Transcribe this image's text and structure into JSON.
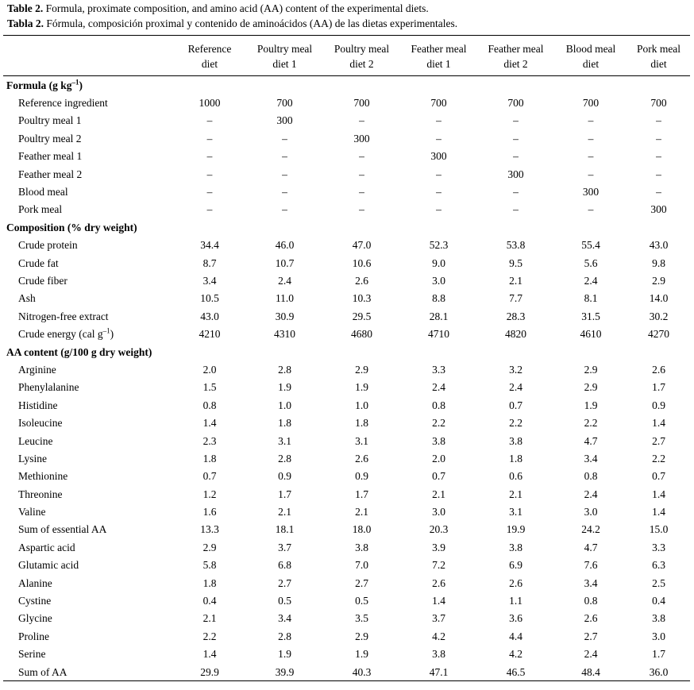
{
  "caption_en": {
    "prefix": "Table 2.",
    "text": " Formula, proximate composition, and amino acid (AA) content of the experimental diets."
  },
  "caption_es": {
    "prefix": "Tabla 2.",
    "text": " Fórmula, composición proximal y contenido de aminoácidos (AA) de las dietas experimentales."
  },
  "header": {
    "columns": [
      {
        "line1": "Reference",
        "line2": "diet"
      },
      {
        "line1": "Poultry meal",
        "line2": "diet 1"
      },
      {
        "line1": "Poultry meal",
        "line2": "diet 2"
      },
      {
        "line1": "Feather meal",
        "line2": "diet 1"
      },
      {
        "line1": "Feather meal",
        "line2": "diet 2"
      },
      {
        "line1": "Blood meal",
        "line2": "diet"
      },
      {
        "line1": "Pork meal",
        "line2": "diet"
      }
    ]
  },
  "sections": [
    {
      "title": "Formula (g kg",
      "title_sup": "–1",
      "title_suffix": ")",
      "rows": [
        {
          "label": "Reference ingredient",
          "values": [
            "1000",
            "700",
            "700",
            "700",
            "700",
            "700",
            "700"
          ]
        },
        {
          "label": "Poultry meal 1",
          "values": [
            "–",
            "300",
            "–",
            "–",
            "–",
            "–",
            "–"
          ]
        },
        {
          "label": "Poultry meal 2",
          "values": [
            "–",
            "–",
            "300",
            "–",
            "–",
            "–",
            "–"
          ]
        },
        {
          "label": "Feather meal 1",
          "values": [
            "–",
            "–",
            "–",
            "300",
            "–",
            "–",
            "–"
          ]
        },
        {
          "label": "Feather meal 2",
          "values": [
            "–",
            "–",
            "–",
            "–",
            "300",
            "–",
            "–"
          ]
        },
        {
          "label": "Blood meal",
          "values": [
            "–",
            "–",
            "–",
            "–",
            "–",
            "300",
            "–"
          ]
        },
        {
          "label": "Pork meal",
          "values": [
            "–",
            "–",
            "–",
            "–",
            "–",
            "–",
            "300"
          ]
        }
      ]
    },
    {
      "title": "Composition (% dry weight)",
      "rows": [
        {
          "label": "Crude protein",
          "values": [
            "34.4",
            "46.0",
            "47.0",
            "52.3",
            "53.8",
            "55.4",
            "43.0"
          ]
        },
        {
          "label": "Crude fat",
          "values": [
            "8.7",
            "10.7",
            "10.6",
            "9.0",
            "9.5",
            "5.6",
            "9.8"
          ]
        },
        {
          "label": "Crude fiber",
          "values": [
            "3.4",
            "2.4",
            "2.6",
            "3.0",
            "2.1",
            "2.4",
            "2.9"
          ]
        },
        {
          "label": "Ash",
          "values": [
            "10.5",
            "11.0",
            "10.3",
            "8.8",
            "7.7",
            "8.1",
            "14.0"
          ]
        },
        {
          "label": "Nitrogen-free extract",
          "values": [
            "43.0",
            "30.9",
            "29.5",
            "28.1",
            "28.3",
            "31.5",
            "30.2"
          ]
        },
        {
          "label": "Crude energy (cal g",
          "label_sup": "–1",
          "label_suffix": ")",
          "values": [
            "4210",
            "4310",
            "4680",
            "4710",
            "4820",
            "4610",
            "4270"
          ]
        }
      ]
    },
    {
      "title": "AA content (g/100 g dry weight)",
      "rows": [
        {
          "label": "Arginine",
          "values": [
            "2.0",
            "2.8",
            "2.9",
            "3.3",
            "3.2",
            "2.9",
            "2.6"
          ]
        },
        {
          "label": "Phenylalanine",
          "values": [
            "1.5",
            "1.9",
            "1.9",
            "2.4",
            "2.4",
            "2.9",
            "1.7"
          ]
        },
        {
          "label": "Histidine",
          "values": [
            "0.8",
            "1.0",
            "1.0",
            "0.8",
            "0.7",
            "1.9",
            "0.9"
          ]
        },
        {
          "label": "Isoleucine",
          "values": [
            "1.4",
            "1.8",
            "1.8",
            "2.2",
            "2.2",
            "2.2",
            "1.4"
          ]
        },
        {
          "label": "Leucine",
          "values": [
            "2.3",
            "3.1",
            "3.1",
            "3.8",
            "3.8",
            "4.7",
            "2.7"
          ]
        },
        {
          "label": "Lysine",
          "values": [
            "1.8",
            "2.8",
            "2.6",
            "2.0",
            "1.8",
            "3.4",
            "2.2"
          ]
        },
        {
          "label": "Methionine",
          "values": [
            "0.7",
            "0.9",
            "0.9",
            "0.7",
            "0.6",
            "0.8",
            "0.7"
          ]
        },
        {
          "label": "Threonine",
          "values": [
            "1.2",
            "1.7",
            "1.7",
            "2.1",
            "2.1",
            "2.4",
            "1.4"
          ]
        },
        {
          "label": "Valine",
          "values": [
            "1.6",
            "2.1",
            "2.1",
            "3.0",
            "3.1",
            "3.0",
            "1.4"
          ]
        },
        {
          "label": "Sum of essential AA",
          "values": [
            "13.3",
            "18.1",
            "18.0",
            "20.3",
            "19.9",
            "24.2",
            "15.0"
          ]
        },
        {
          "label": "Aspartic acid",
          "values": [
            "2.9",
            "3.7",
            "3.8",
            "3.9",
            "3.8",
            "4.7",
            "3.3"
          ]
        },
        {
          "label": "Glutamic acid",
          "values": [
            "5.8",
            "6.8",
            "7.0",
            "7.2",
            "6.9",
            "7.6",
            "6.3"
          ]
        },
        {
          "label": "Alanine",
          "values": [
            "1.8",
            "2.7",
            "2.7",
            "2.6",
            "2.6",
            "3.4",
            "2.5"
          ]
        },
        {
          "label": "Cystine",
          "values": [
            "0.4",
            "0.5",
            "0.5",
            "1.4",
            "1.1",
            "0.8",
            "0.4"
          ]
        },
        {
          "label": "Glycine",
          "values": [
            "2.1",
            "3.4",
            "3.5",
            "3.7",
            "3.6",
            "2.6",
            "3.8"
          ]
        },
        {
          "label": "Proline",
          "values": [
            "2.2",
            "2.8",
            "2.9",
            "4.2",
            "4.4",
            "2.7",
            "3.0"
          ]
        },
        {
          "label": "Serine",
          "values": [
            "1.4",
            "1.9",
            "1.9",
            "3.8",
            "4.2",
            "2.4",
            "1.7"
          ]
        },
        {
          "label": "Sum of AA",
          "values": [
            "29.9",
            "39.9",
            "40.3",
            "47.1",
            "46.5",
            "48.4",
            "36.0"
          ]
        }
      ]
    }
  ]
}
